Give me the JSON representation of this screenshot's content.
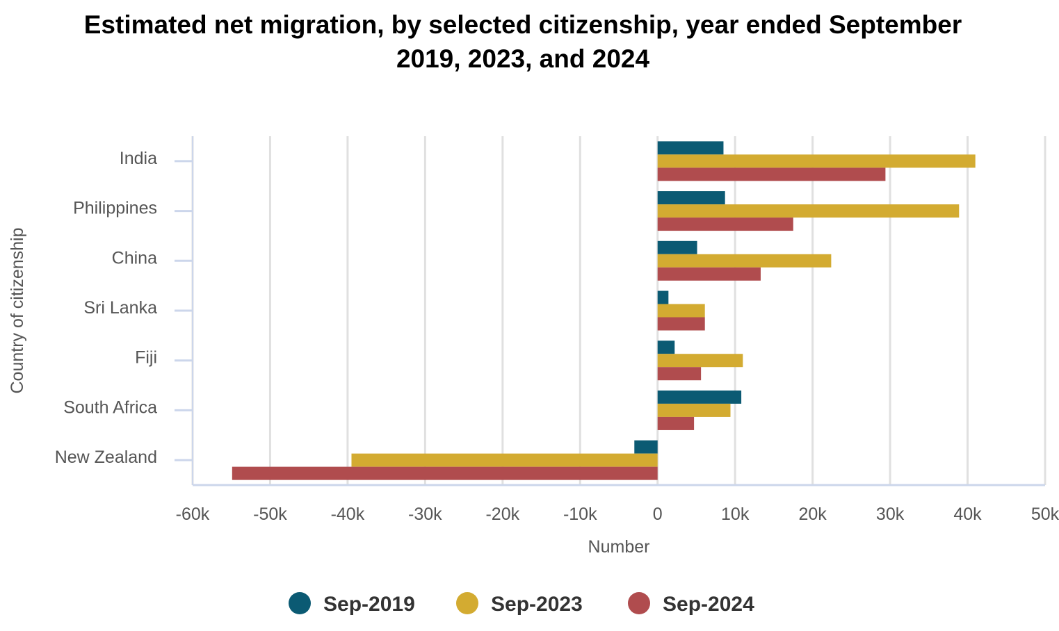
{
  "chart_data": {
    "type": "bar",
    "orientation": "horizontal",
    "title_lines": [
      "Estimated net migration, by selected citizenship, year ended September",
      "2019, 2023, and 2024"
    ],
    "xlabel": "Number",
    "ylabel": "Country of citizenship",
    "xlim": [
      -60000,
      50000
    ],
    "x_ticks": [
      -60000,
      -50000,
      -40000,
      -30000,
      -20000,
      -10000,
      0,
      10000,
      20000,
      30000,
      40000,
      50000
    ],
    "x_tick_labels": [
      "-60k",
      "-50k",
      "-40k",
      "-30k",
      "-20k",
      "-10k",
      "0",
      "10k",
      "20k",
      "30k",
      "40k",
      "50k"
    ],
    "grid": "vertical",
    "legend_position": "bottom",
    "categories": [
      "India",
      "Philippines",
      "China",
      "Sri Lanka",
      "Fiji",
      "South Africa",
      "New Zealand"
    ],
    "series": [
      {
        "name": "Sep-2019",
        "color": "#0b5a73",
        "values": [
          8500,
          8700,
          5100,
          1400,
          2200,
          10800,
          -3000
        ]
      },
      {
        "name": "Sep-2023",
        "color": "#d3ab31",
        "values": [
          41000,
          38900,
          22400,
          6100,
          11000,
          9400,
          -39500
        ]
      },
      {
        "name": "Sep-2024",
        "color": "#b04c4e",
        "values": [
          29400,
          17500,
          13300,
          6100,
          5600,
          4700,
          -54900
        ]
      }
    ]
  }
}
